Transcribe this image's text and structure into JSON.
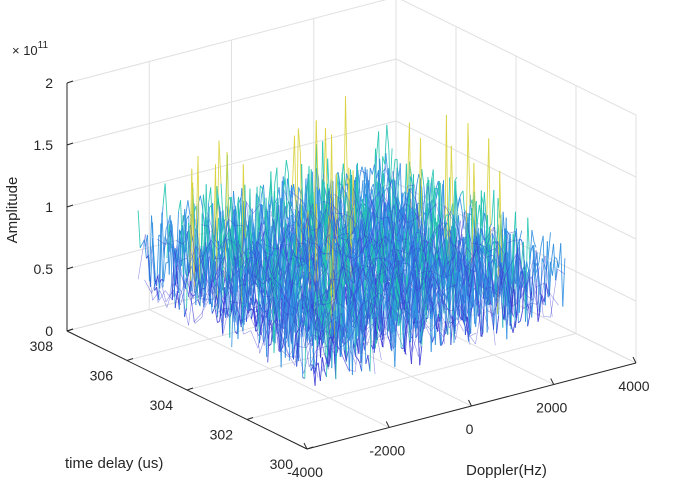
{
  "chart_data": {
    "type": "surface",
    "view": "3d-mesh",
    "x_axis": {
      "label": "Doppler(Hz)",
      "ticks": [
        -4000,
        -2000,
        0,
        2000,
        4000
      ],
      "range": [
        -4000,
        4000
      ]
    },
    "y_axis": {
      "label": "time delay (us)",
      "ticks": [
        300,
        302,
        304,
        306,
        308
      ],
      "range": [
        300,
        308
      ]
    },
    "z_axis": {
      "label": "Amplitude",
      "ticks": [
        0,
        0.5,
        1,
        1.5,
        2
      ],
      "range": [
        0,
        2
      ],
      "exponent_label": "× 10",
      "exponent_power": "11"
    },
    "data_extent": {
      "doppler": [
        -3000,
        3000
      ],
      "time_delay": [
        301,
        307
      ]
    },
    "amplitude_summary": {
      "typical_min": 0.25,
      "typical_max": 1.05,
      "peak": 1.8
    },
    "grid": true,
    "colormap": "parula",
    "colors": {
      "low": "#3b3bd6",
      "mid": "#2f8fe0",
      "high": "#22c4b0",
      "peak": "#d8d23a"
    }
  }
}
